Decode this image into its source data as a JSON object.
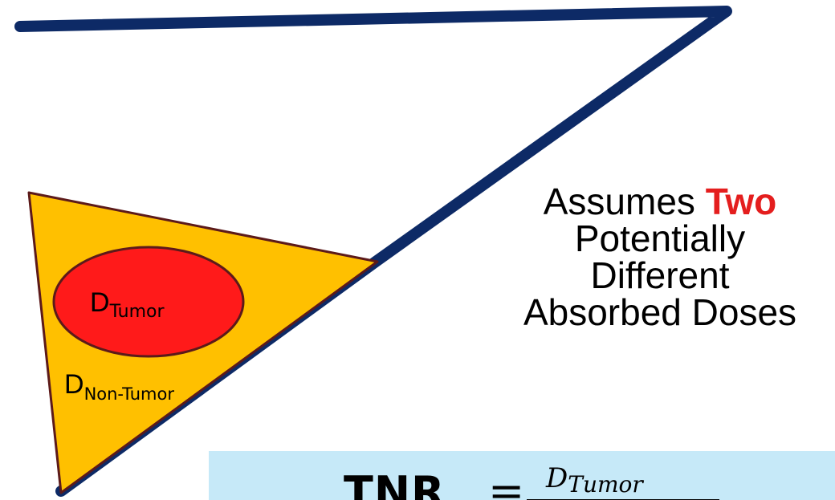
{
  "regions": {
    "tumor_label": {
      "main": "D",
      "sub": "Tumor"
    },
    "non_tumor_label": {
      "main": "D",
      "sub": "Non-Tumor"
    }
  },
  "caption": {
    "line1_prefix": "Assumes ",
    "line1_highlight": "Two",
    "line2": "Potentially",
    "line3": "Different",
    "line4": "Absorbed Doses"
  },
  "formula": {
    "lhs": "TNR",
    "equals": "=",
    "numerator_main": "D",
    "numerator_sub": "Tumor"
  },
  "colors": {
    "outline": "#0d2a66",
    "orange_fill": "#ffc000",
    "orange_stroke": "#5c1a1a",
    "tumor_fill": "#ff1a1a",
    "tumor_stroke": "#5c1a1a",
    "highlight_text": "#e41e1e",
    "formula_bg": "#c6e9f8"
  }
}
